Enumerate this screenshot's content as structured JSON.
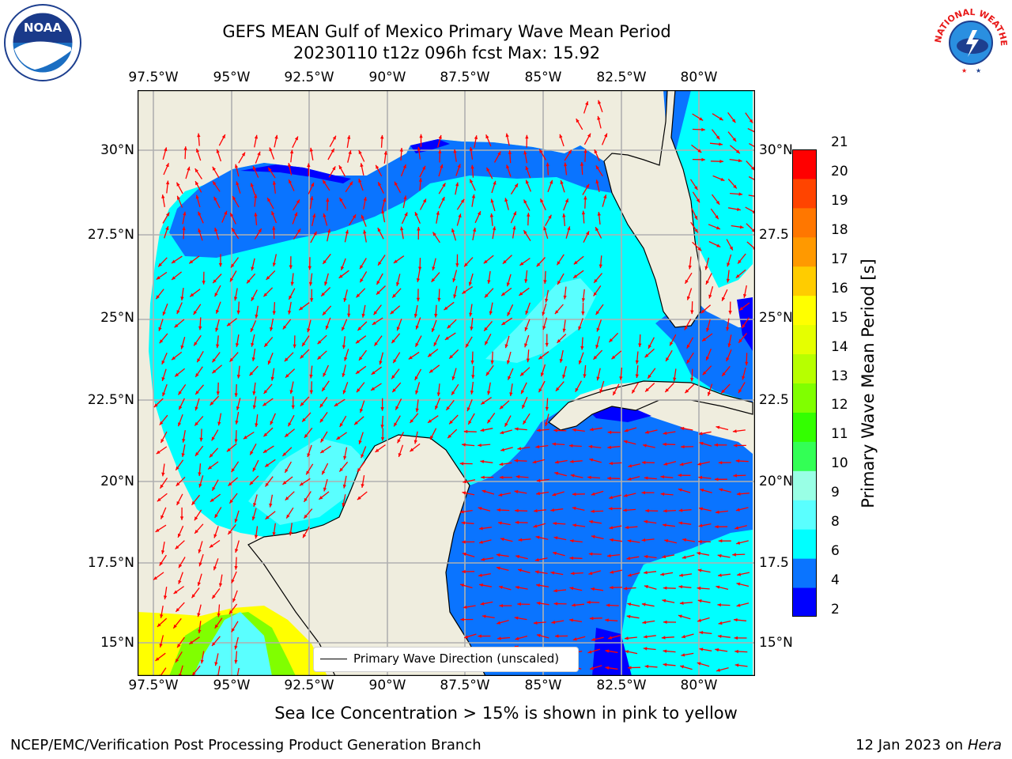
{
  "header": {
    "title_line1": "GEFS MEAN Gulf of Mexico Primary Wave Mean Period",
    "title_line2": "20230110 t12z 096h fcst   Max: 15.92"
  },
  "logos": {
    "left": "NOAA",
    "left_ring": "NATIONAL OCEANIC AND ATMOSPHERIC ADMINISTRATION · U.S. DEPARTMENT OF COMMERCE",
    "right_ring": "NATIONAL WEATHER SERVICE"
  },
  "map": {
    "lon_labels": [
      "97.5°W",
      "95°W",
      "92.5°W",
      "90°W",
      "87.5°W",
      "85°W",
      "82.5°W",
      "80°W"
    ],
    "lat_labels": [
      "30°N",
      "27.5°N",
      "25°N",
      "22.5°N",
      "20°N",
      "17.5°N",
      "15°N"
    ],
    "lat_labels_right": [
      "30°N",
      "27.5",
      "25°N",
      "22.5",
      "20°N",
      "17.5",
      "15°N"
    ],
    "legend_label": "Primary Wave Direction (unscaled)",
    "colors": {
      "land": "#efedde",
      "arrow": "#ff0000",
      "grid": "#b0b0b0"
    }
  },
  "colorbar": {
    "label": "Primary Wave Mean Period [s]",
    "ticks": [
      "2",
      "4",
      "6",
      "8",
      "9",
      "10",
      "11",
      "12",
      "13",
      "14",
      "15",
      "16",
      "17",
      "18",
      "19",
      "20",
      "21"
    ],
    "colors": [
      "#0000ff",
      "#0a74ff",
      "#00ffff",
      "#5affff",
      "#99ffe5",
      "#33ff55",
      "#33ff00",
      "#80ff00",
      "#b7ff00",
      "#e5ff00",
      "#ffff00",
      "#ffcc00",
      "#ff9900",
      "#ff7700",
      "#ff4400",
      "#ff0000"
    ]
  },
  "subtitle": "Sea Ice Concentration > 15% is shown in pink to yellow",
  "footer": {
    "left": "NCEP/EMC/Verification Post Processing Product Generation Branch",
    "right_prefix": "12 Jan 2023 on ",
    "right_host": "Hera"
  }
}
